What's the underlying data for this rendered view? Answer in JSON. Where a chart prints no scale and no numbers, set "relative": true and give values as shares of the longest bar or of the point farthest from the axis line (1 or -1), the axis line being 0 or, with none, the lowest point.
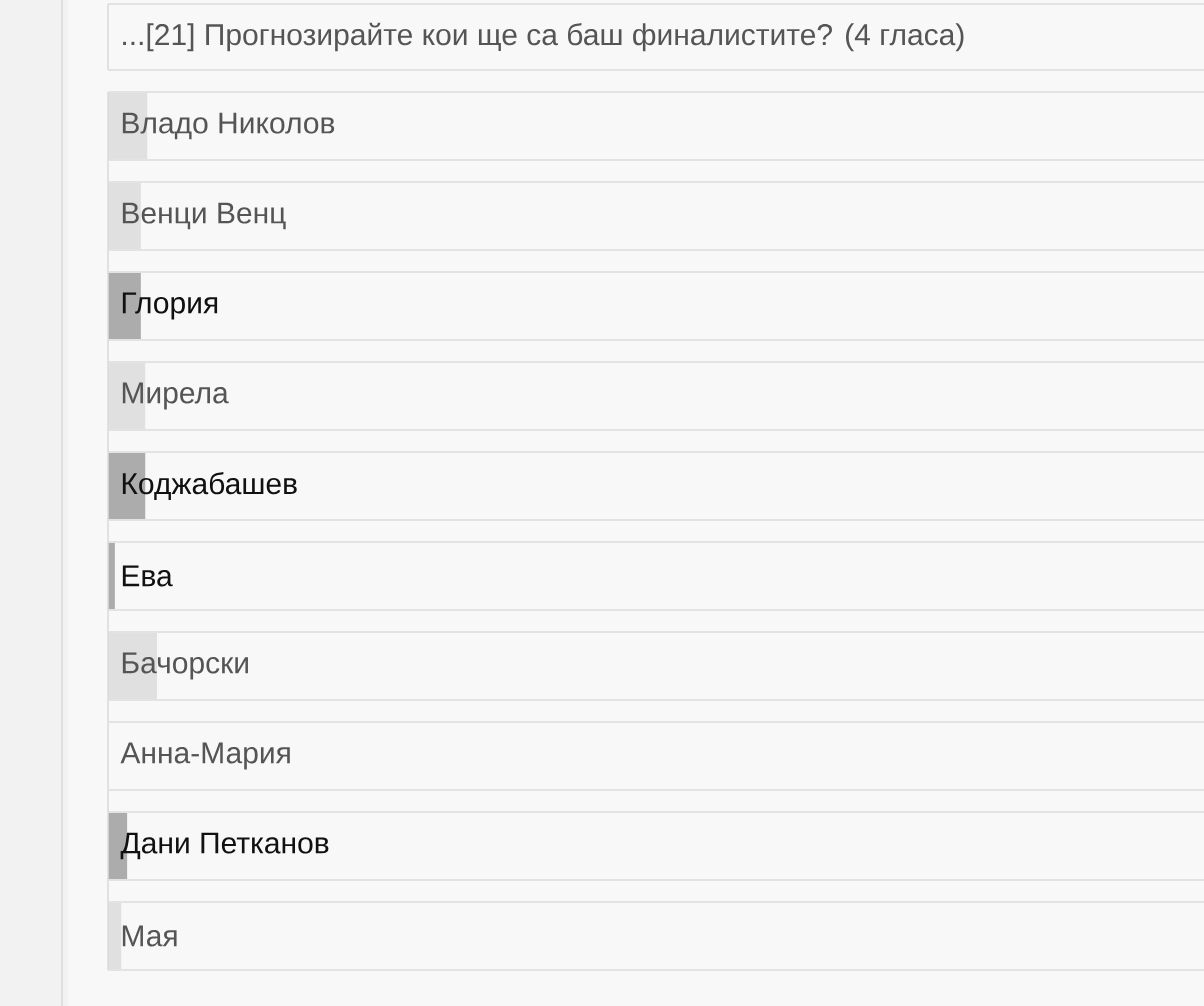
{
  "chart_data": {
    "type": "bar",
    "orientation": "horizontal",
    "relative": true,
    "title": "...[21] Прогнозирайте кои ще са баш финалистите? (4 гласа)",
    "categories": [
      "Владо Николов",
      "Венци Венц",
      "Глория",
      "Мирела",
      "Коджабашев",
      "Ева",
      "Бачорски",
      "Анна-Мария",
      "Дани Петканов",
      "Мая"
    ],
    "values": [
      0.8,
      0.67,
      0.67,
      0.76,
      0.76,
      0.14,
      1,
      0,
      0.39,
      0.27
    ],
    "colors": [
      "#e0e0e0",
      "#e0e0e0",
      "#acacac",
      "#e0e0e0",
      "#acacac",
      "#acacac",
      "#e0e0e0",
      "#e0e0e0",
      "#acacac",
      "#e0e0e0"
    ]
  }
}
